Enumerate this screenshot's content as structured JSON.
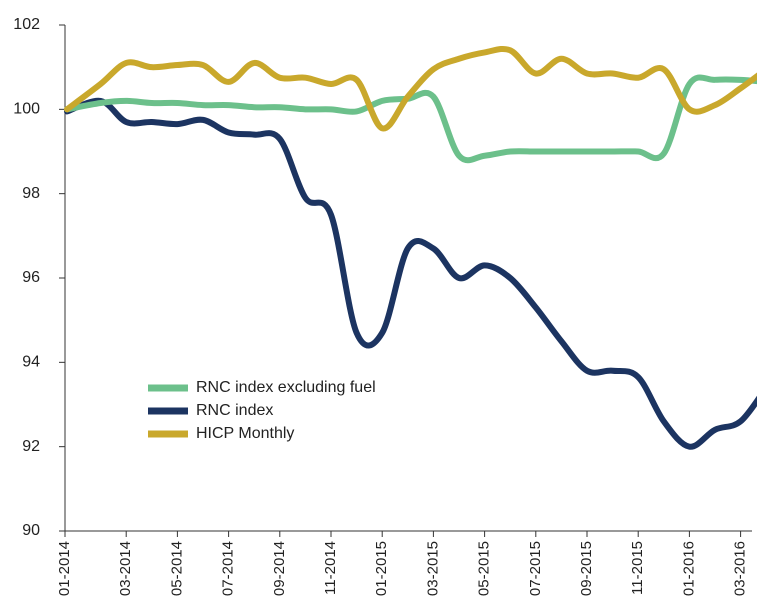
{
  "chart_data": {
    "type": "line",
    "categories": [
      "01-2014",
      null,
      "03-2014",
      null,
      "05-2014",
      null,
      "07-2014",
      null,
      "09-2014",
      null,
      "11-2014",
      null,
      "01-2015",
      null,
      "03-2015",
      null,
      "05-2015",
      null,
      "07-2015",
      null,
      "09-2015",
      null,
      "11-2015",
      null,
      "01-2016",
      null,
      "03-2016",
      null
    ],
    "series": [
      {
        "name": "RNC index excluding fuel",
        "color": "#6cc08b",
        "values": [
          100,
          100.15,
          100.2,
          100.15,
          100.15,
          100.1,
          100.1,
          100.05,
          100.05,
          100,
          100,
          99.95,
          100.2,
          100.25,
          100.3,
          98.9,
          98.9,
          99,
          99,
          99,
          99,
          99,
          99,
          98.95,
          100.6,
          100.7,
          100.7,
          100.65
        ]
      },
      {
        "name": "RNC index",
        "color": "#1c3461",
        "values": [
          99.95,
          100.2,
          99.7,
          99.7,
          99.65,
          99.75,
          99.45,
          99.4,
          99.3,
          97.9,
          97.5,
          94.7,
          94.7,
          96.7,
          96.7,
          96.0,
          96.3,
          96.0,
          95.3,
          94.5,
          93.8,
          93.8,
          93.65,
          92.6,
          92.0,
          92.4,
          92.6,
          93.4
        ]
      },
      {
        "name": "HICP Monthly",
        "color": "#c9a82c",
        "values": [
          100,
          100.6,
          101.1,
          101.0,
          101.05,
          101.05,
          100.65,
          101.1,
          100.75,
          100.75,
          100.6,
          100.7,
          99.55,
          100.3,
          100.95,
          101.2,
          101.35,
          101.4,
          100.85,
          101.2,
          100.85,
          100.85,
          100.75,
          100.95,
          100.0,
          100.1,
          100.5,
          100.95
        ]
      }
    ],
    "ylim": [
      90,
      102
    ],
    "yticks": [
      90,
      92,
      94,
      96,
      98,
      100,
      102
    ],
    "grid": false,
    "legend": "lower-left"
  }
}
